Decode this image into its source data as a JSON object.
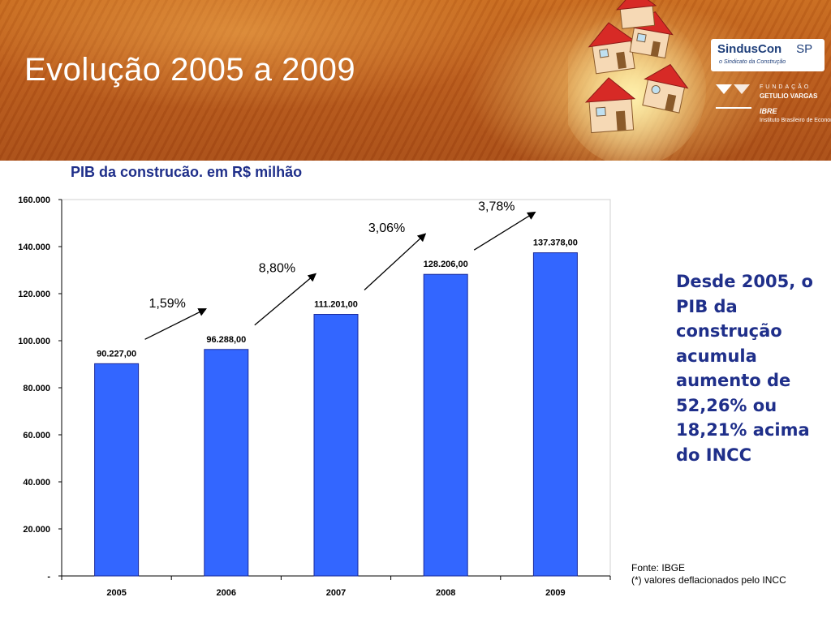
{
  "header": {
    "title": "Evolução 2005 a 2009",
    "logo_sinduscon": "SindusCon",
    "logo_sinduscon_sp": "SP",
    "logo_sinduscon_tagline": "o Sindicato da Construção",
    "fgv_line1": "FUNDAÇÃO",
    "fgv_line2": "GETULIO VARGAS",
    "ibre": "IBRE",
    "ibre_full": "Instituto Brasileiro de Economia"
  },
  "chart_data": {
    "type": "bar",
    "title": "PIB da construcão. em R$ milhão",
    "categories": [
      "2005",
      "2006",
      "2007",
      "2008",
      "2009"
    ],
    "values": [
      90227,
      96288,
      111201,
      128206,
      137378
    ],
    "value_labels": [
      "90.227,00",
      "96.288,00",
      "111.201,00",
      "128.206,00",
      "137.378,00"
    ],
    "y_ticks": [
      0,
      20000,
      40000,
      60000,
      80000,
      100000,
      120000,
      140000,
      160000
    ],
    "y_tick_labels": [
      "-",
      "20.000",
      "40.000",
      "60.000",
      "80.000",
      "100.000",
      "120.000",
      "140.000",
      "160.000"
    ],
    "ylim": [
      0,
      160000
    ],
    "growth_annotations": [
      "1,59%",
      "8,80%",
      "3,06%",
      "3,78%"
    ],
    "bar_color": "#3366ff",
    "grid": false
  },
  "note": {
    "text": "Desde 2005, o PIB da construção acumula aumento de 52,26% ou 18,21% acima do INCC"
  },
  "source": {
    "line1": "Fonte: IBGE",
    "line2": "(*) valores deflacionados pelo INCC"
  }
}
